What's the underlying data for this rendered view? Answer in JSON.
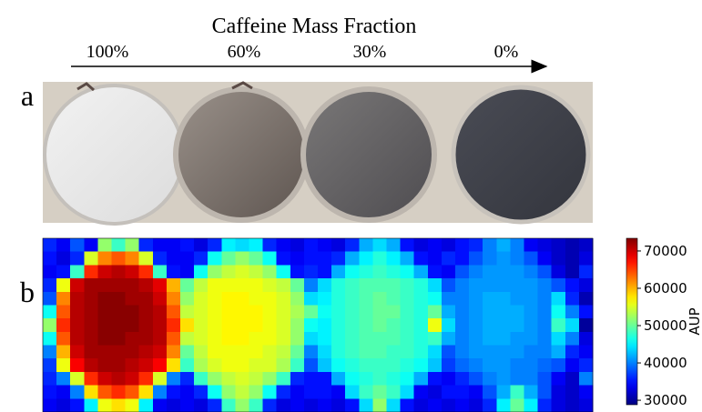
{
  "chart_data": {
    "type": "heatmap",
    "title": "Caffeine Mass Fraction",
    "column_labels": [
      "100%",
      "60%",
      "30%",
      "0%"
    ],
    "panel_labels": [
      "a",
      "b"
    ],
    "colorbar_label": "AUP",
    "colorscale": "jet",
    "zlim": [
      28800,
      73400
    ],
    "zticks": [
      30000,
      40000,
      50000,
      60000,
      70000
    ],
    "z": [
      [
        36000,
        34000,
        38000,
        34000,
        52000,
        48000,
        52000,
        36000,
        34000,
        34000,
        35000,
        33000,
        36000,
        45000,
        44000,
        45000,
        36000,
        34000,
        33000,
        35000,
        34000,
        33000,
        36000,
        42000,
        44000,
        42000,
        35000,
        33000,
        34000,
        33000,
        35000,
        36000,
        40000,
        42000,
        40000,
        34000,
        33000,
        32000,
        31000,
        32000
      ],
      [
        35000,
        33000,
        36000,
        55000,
        62000,
        64000,
        62000,
        55000,
        36000,
        34000,
        34000,
        36000,
        46000,
        50000,
        52000,
        50000,
        46000,
        35000,
        34000,
        35000,
        35000,
        36000,
        42000,
        45000,
        47000,
        45000,
        42000,
        35000,
        34000,
        36000,
        35000,
        38000,
        40000,
        41000,
        40000,
        38000,
        34000,
        32000,
        31000,
        33000
      ],
      [
        34000,
        35000,
        48000,
        66000,
        70000,
        71000,
        70000,
        66000,
        48000,
        35000,
        34000,
        46000,
        52000,
        54000,
        55000,
        54000,
        52000,
        46000,
        35000,
        36000,
        35000,
        42000,
        46000,
        47000,
        48000,
        47000,
        46000,
        42000,
        35000,
        34000,
        38000,
        40000,
        41000,
        41000,
        41000,
        40000,
        38000,
        33000,
        31000,
        36000
      ],
      [
        36000,
        56000,
        70000,
        72000,
        72000,
        72000,
        72000,
        71000,
        69000,
        60000,
        50000,
        54000,
        56000,
        56000,
        56000,
        56000,
        55000,
        54000,
        50000,
        40000,
        44000,
        47000,
        48000,
        49000,
        49000,
        49000,
        48000,
        47000,
        44000,
        38000,
        40000,
        41000,
        41000,
        41000,
        41000,
        41000,
        40000,
        38000,
        35000,
        33000
      ],
      [
        38000,
        62000,
        71000,
        72000,
        73000,
        73000,
        72000,
        72000,
        70000,
        62000,
        52000,
        55000,
        56000,
        57000,
        57000,
        56000,
        56000,
        55000,
        52000,
        44000,
        45000,
        47000,
        48000,
        49000,
        50000,
        49000,
        48000,
        47000,
        46000,
        40000,
        40000,
        41000,
        42000,
        42000,
        41000,
        41000,
        40000,
        44000,
        36000,
        31000
      ],
      [
        46000,
        64000,
        71000,
        72000,
        73000,
        73000,
        73000,
        72000,
        71000,
        64000,
        54000,
        55000,
        56000,
        57000,
        57000,
        57000,
        56000,
        55000,
        53000,
        50000,
        46000,
        47000,
        48000,
        49000,
        50000,
        50000,
        48000,
        47000,
        50000,
        42000,
        40000,
        41000,
        42000,
        42000,
        42000,
        41000,
        40000,
        46000,
        40000,
        35000
      ],
      [
        52000,
        66000,
        71000,
        72000,
        73000,
        73000,
        73000,
        72000,
        71000,
        66000,
        58000,
        55000,
        56000,
        57000,
        57000,
        57000,
        56000,
        55000,
        52000,
        46000,
        45000,
        47000,
        48000,
        49000,
        50000,
        49000,
        48000,
        47000,
        56000,
        44000,
        40000,
        41000,
        42000,
        42000,
        42000,
        41000,
        40000,
        48000,
        44000,
        30000
      ],
      [
        46000,
        64000,
        71000,
        72000,
        73000,
        73000,
        72000,
        72000,
        71000,
        64000,
        54000,
        55000,
        56000,
        57000,
        57000,
        56000,
        56000,
        55000,
        52000,
        44000,
        45000,
        47000,
        48000,
        49000,
        49000,
        49000,
        48000,
        47000,
        48000,
        42000,
        40000,
        41000,
        42000,
        42000,
        41000,
        41000,
        40000,
        44000,
        40000,
        33000
      ],
      [
        40000,
        60000,
        70000,
        72000,
        72000,
        72000,
        72000,
        71000,
        70000,
        62000,
        50000,
        54000,
        56000,
        56000,
        56000,
        56000,
        55000,
        54000,
        50000,
        40000,
        44000,
        47000,
        48000,
        49000,
        49000,
        48000,
        48000,
        47000,
        44000,
        38000,
        40000,
        41000,
        41000,
        41000,
        41000,
        40000,
        40000,
        42000,
        36000,
        34000
      ],
      [
        37000,
        56000,
        68000,
        71000,
        72000,
        72000,
        71000,
        70000,
        68000,
        58000,
        48000,
        53000,
        55000,
        56000,
        56000,
        55000,
        55000,
        53000,
        48000,
        38000,
        43000,
        46000,
        47000,
        48000,
        48000,
        48000,
        47000,
        46000,
        43000,
        37000,
        39000,
        40000,
        41000,
        41000,
        40000,
        40000,
        39000,
        38000,
        34000,
        36000
      ],
      [
        36000,
        40000,
        55000,
        66000,
        70000,
        71000,
        70000,
        66000,
        55000,
        40000,
        36000,
        48000,
        52000,
        54000,
        55000,
        54000,
        52000,
        48000,
        36000,
        35000,
        35000,
        42000,
        46000,
        47000,
        48000,
        47000,
        46000,
        42000,
        35000,
        34000,
        36000,
        38000,
        40000,
        41000,
        40000,
        40000,
        38000,
        34000,
        32000,
        40000
      ],
      [
        35000,
        34000,
        40000,
        58000,
        64000,
        66000,
        64000,
        58000,
        40000,
        35000,
        34000,
        36000,
        46000,
        52000,
        54000,
        52000,
        46000,
        36000,
        34000,
        35000,
        35000,
        34000,
        44000,
        48000,
        50000,
        48000,
        44000,
        34000,
        33000,
        35000,
        35000,
        34000,
        38000,
        42000,
        48000,
        42000,
        38000,
        33000,
        32000,
        34000
      ],
      [
        34000,
        33000,
        35000,
        45000,
        56000,
        58000,
        56000,
        45000,
        34000,
        33000,
        34000,
        33000,
        36000,
        48000,
        52000,
        48000,
        36000,
        33000,
        34000,
        33000,
        34000,
        33000,
        35000,
        44000,
        52000,
        44000,
        35000,
        33000,
        34000,
        33000,
        34000,
        33000,
        36000,
        45000,
        50000,
        45000,
        36000,
        33000,
        32000,
        33000
      ]
    ]
  }
}
